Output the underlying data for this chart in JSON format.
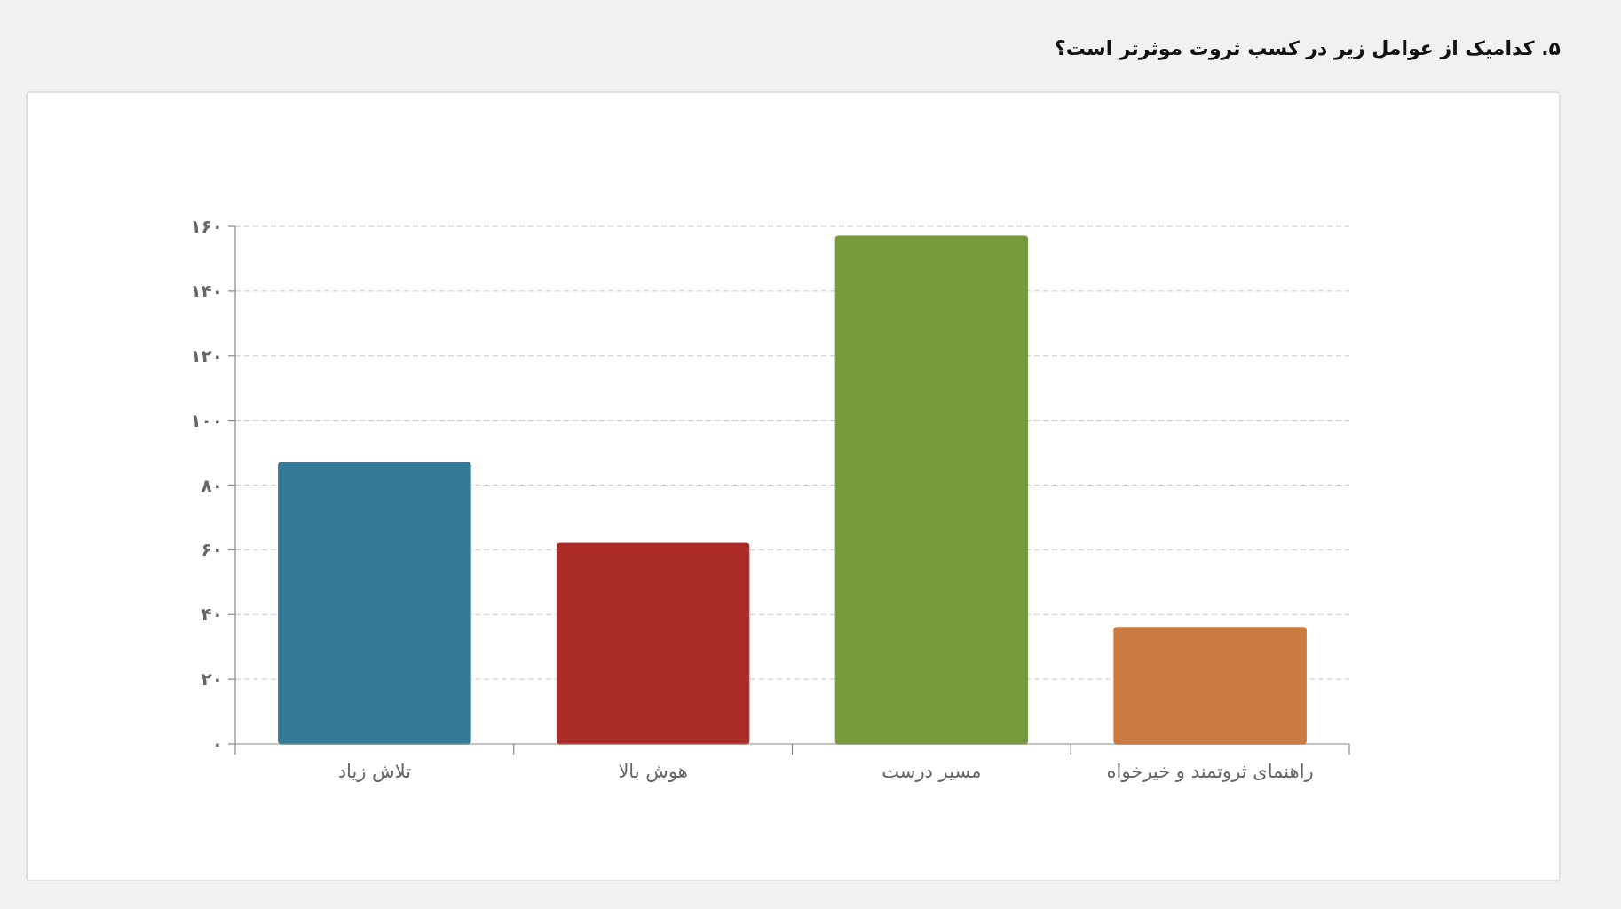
{
  "chart_data": {
    "type": "bar",
    "title": "۵. کدامیک از عوامل زیر در کسب ثروت موثرتر است؟",
    "categories": [
      "تلاش زیاد",
      "هوش بالا",
      "مسیر درست",
      "راهنمای ثروتمند و خیرخواه"
    ],
    "values": [
      87,
      62,
      157,
      36
    ],
    "colors": [
      "#357b98",
      "#ab2b27",
      "#76993b",
      "#cb7a40"
    ],
    "ylim": [
      0,
      160
    ],
    "yticks": [
      {
        "value": 0,
        "label": "۰"
      },
      {
        "value": 20,
        "label": "۲۰"
      },
      {
        "value": 40,
        "label": "۴۰"
      },
      {
        "value": 60,
        "label": "۶۰"
      },
      {
        "value": 80,
        "label": "۸۰"
      },
      {
        "value": 100,
        "label": "۱۰۰"
      },
      {
        "value": 120,
        "label": "۱۲۰"
      },
      {
        "value": 140,
        "label": "۱۴۰"
      },
      {
        "value": 160,
        "label": "۱۶۰"
      }
    ],
    "grid": "y"
  }
}
